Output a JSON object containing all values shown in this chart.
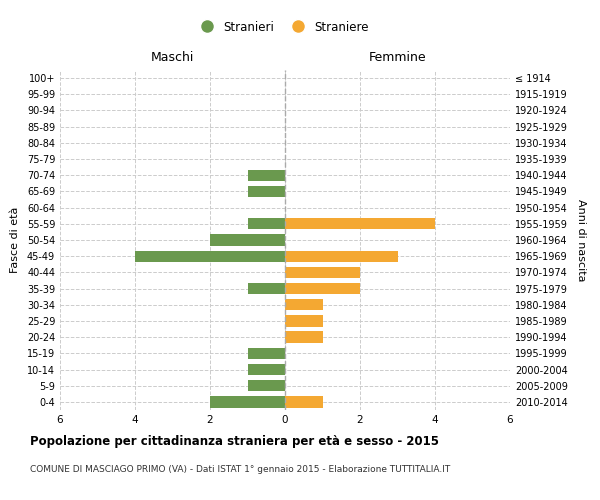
{
  "age_groups": [
    "100+",
    "95-99",
    "90-94",
    "85-89",
    "80-84",
    "75-79",
    "70-74",
    "65-69",
    "60-64",
    "55-59",
    "50-54",
    "45-49",
    "40-44",
    "35-39",
    "30-34",
    "25-29",
    "20-24",
    "15-19",
    "10-14",
    "5-9",
    "0-4"
  ],
  "birth_years": [
    "≤ 1914",
    "1915-1919",
    "1920-1924",
    "1925-1929",
    "1930-1934",
    "1935-1939",
    "1940-1944",
    "1945-1949",
    "1950-1954",
    "1955-1959",
    "1960-1964",
    "1965-1969",
    "1970-1974",
    "1975-1979",
    "1980-1984",
    "1985-1989",
    "1990-1994",
    "1995-1999",
    "2000-2004",
    "2005-2009",
    "2010-2014"
  ],
  "maschi": [
    0,
    0,
    0,
    0,
    0,
    0,
    1,
    1,
    0,
    1,
    2,
    4,
    0,
    1,
    0,
    0,
    0,
    1,
    1,
    1,
    2
  ],
  "femmine": [
    0,
    0,
    0,
    0,
    0,
    0,
    0,
    0,
    0,
    4,
    0,
    3,
    2,
    2,
    1,
    1,
    1,
    0,
    0,
    0,
    1
  ],
  "maschi_color": "#6a994e",
  "femmine_color": "#f4a832",
  "title": "Popolazione per cittadinanza straniera per età e sesso - 2015",
  "subtitle": "COMUNE DI MASCIAGO PRIMO (VA) - Dati ISTAT 1° gennaio 2015 - Elaborazione TUTTITALIA.IT",
  "xlabel_left": "Maschi",
  "xlabel_right": "Femmine",
  "ylabel_left": "Fasce di età",
  "ylabel_right": "Anni di nascita",
  "legend_maschi": "Stranieri",
  "legend_femmine": "Straniere",
  "xlim": 6,
  "bg_color": "#ffffff",
  "grid_color": "#cccccc",
  "bar_height": 0.7
}
